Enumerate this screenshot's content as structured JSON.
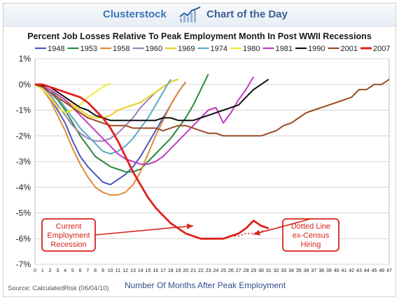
{
  "brand": {
    "name": "Clusterstock",
    "tagline": "Chart of the Day",
    "logo_icon": "trend-chart-logo-icon"
  },
  "source": "Source: CalculatedRisk (06/04/10)",
  "chart_data": {
    "type": "line",
    "title": "Percent Job Losses Relative To Peak Employment Month In Post WWII Recessions",
    "xlabel": "Number Of Months After Peak Employment",
    "ylabel": "",
    "xlim": [
      0,
      47
    ],
    "ylim": [
      -7,
      1
    ],
    "x_ticks": [
      0,
      1,
      2,
      3,
      4,
      5,
      6,
      7,
      8,
      9,
      10,
      11,
      12,
      13,
      14,
      15,
      16,
      17,
      18,
      19,
      20,
      21,
      22,
      23,
      24,
      25,
      26,
      27,
      28,
      29,
      30,
      31,
      32,
      33,
      34,
      35,
      36,
      37,
      38,
      39,
      40,
      41,
      42,
      43,
      44,
      45,
      46,
      47
    ],
    "y_ticks": [
      1,
      0,
      -1,
      -2,
      -3,
      -4,
      -5,
      -6,
      -7
    ],
    "y_tick_labels": [
      "1%",
      "0%",
      "-1%",
      "-2%",
      "-3%",
      "-4%",
      "-5%",
      "-6%",
      "-7%"
    ],
    "grid": "horizontal",
    "legend_position": "top",
    "series": [
      {
        "name": "1948",
        "color": "#4a56c4",
        "values": [
          0,
          -0.2,
          -0.5,
          -1.0,
          -1.5,
          -2.2,
          -2.8,
          -3.2,
          -3.5,
          -3.8,
          -3.9,
          -3.7,
          -3.5,
          -3.2,
          -2.8,
          -2.3,
          -1.8,
          -1.3,
          -0.8,
          -0.3,
          0.1
        ]
      },
      {
        "name": "1953",
        "color": "#2a8a3e",
        "values": [
          0,
          -0.1,
          -0.3,
          -0.6,
          -1.0,
          -1.5,
          -2.0,
          -2.4,
          -2.8,
          -3.0,
          -3.2,
          -3.3,
          -3.4,
          -3.4,
          -3.3,
          -3.0,
          -2.7,
          -2.4,
          -2.1,
          -1.7,
          -1.3,
          -0.8,
          -0.2,
          0.4
        ]
      },
      {
        "name": "1958",
        "color": "#e08a35",
        "values": [
          0,
          -0.2,
          -0.6,
          -1.2,
          -1.8,
          -2.5,
          -3.1,
          -3.6,
          -4.0,
          -4.2,
          -4.3,
          -4.3,
          -4.2,
          -3.9,
          -3.4,
          -2.7,
          -2.0,
          -1.4,
          -0.8,
          -0.3,
          0.1
        ]
      },
      {
        "name": "1960",
        "color": "#9a82b8",
        "values": [
          0,
          -0.1,
          -0.4,
          -0.8,
          -1.2,
          -1.6,
          -1.9,
          -2.1,
          -2.2,
          -2.2,
          -2.1,
          -1.9,
          -1.6,
          -1.3,
          -0.9,
          -0.6,
          -0.3,
          -0.1,
          0.1,
          0.2
        ]
      },
      {
        "name": "1969",
        "color": "#e8d020",
        "values": [
          0,
          -0.1,
          -0.2,
          -0.4,
          -0.6,
          -0.8,
          -1.0,
          -1.2,
          -1.3,
          -1.3,
          -1.2,
          -1.0,
          -0.9,
          -0.8,
          -0.7,
          -0.5,
          -0.3,
          -0.1,
          0.1,
          0.2
        ]
      },
      {
        "name": "1974",
        "color": "#5aa8c8",
        "values": [
          0,
          -0.1,
          -0.2,
          -0.5,
          -0.9,
          -1.3,
          -1.7,
          -2.0,
          -2.3,
          -2.6,
          -2.7,
          -2.6,
          -2.4,
          -2.1,
          -1.7,
          -1.3,
          -0.8,
          -0.3,
          0.2
        ]
      },
      {
        "name": "1980",
        "color": "#f2ec30",
        "values": [
          0,
          -0.2,
          -0.5,
          -0.9,
          -1.1,
          -1.0,
          -0.8,
          -0.5,
          -0.3,
          -0.1,
          0.05
        ]
      },
      {
        "name": "1981",
        "color": "#c23bc0",
        "values": [
          0,
          -0.1,
          -0.2,
          -0.4,
          -0.6,
          -0.9,
          -1.2,
          -1.5,
          -1.8,
          -2.1,
          -2.4,
          -2.7,
          -2.9,
          -3.0,
          -3.1,
          -3.1,
          -3.0,
          -2.8,
          -2.5,
          -2.2,
          -1.9,
          -1.6,
          -1.3,
          -1.0,
          -0.9,
          -1.5,
          -1.1,
          -0.6,
          -0.2,
          0.3
        ]
      },
      {
        "name": "1990",
        "color": "#111111",
        "values": [
          0,
          -0.05,
          -0.1,
          -0.3,
          -0.5,
          -0.7,
          -0.9,
          -1.0,
          -1.2,
          -1.3,
          -1.4,
          -1.4,
          -1.4,
          -1.4,
          -1.4,
          -1.4,
          -1.4,
          -1.3,
          -1.3,
          -1.4,
          -1.4,
          -1.4,
          -1.3,
          -1.2,
          -1.1,
          -1.0,
          -0.9,
          -0.8,
          -0.5,
          -0.2,
          0.0,
          0.2
        ]
      },
      {
        "name": "2001",
        "color": "#9a4a20",
        "values": [
          0,
          -0.1,
          -0.3,
          -0.5,
          -0.7,
          -0.9,
          -1.1,
          -1.3,
          -1.4,
          -1.5,
          -1.6,
          -1.6,
          -1.6,
          -1.7,
          -1.7,
          -1.7,
          -1.7,
          -1.8,
          -1.7,
          -1.6,
          -1.6,
          -1.7,
          -1.8,
          -1.9,
          -1.9,
          -2.0,
          -2.0,
          -2.0,
          -2.0,
          -2.0,
          -2.0,
          -1.9,
          -1.8,
          -1.6,
          -1.5,
          -1.3,
          -1.1,
          -1.0,
          -0.9,
          -0.8,
          -0.7,
          -0.6,
          -0.5,
          -0.2,
          -0.2,
          0.0,
          0.0,
          0.2
        ]
      },
      {
        "name": "2007",
        "color": "#e0201a",
        "values": [
          0,
          0,
          -0.1,
          -0.2,
          -0.3,
          -0.4,
          -0.5,
          -0.7,
          -1.0,
          -1.3,
          -1.7,
          -2.2,
          -2.8,
          -3.4,
          -3.9,
          -4.4,
          -4.8,
          -5.1,
          -5.4,
          -5.6,
          -5.8,
          -5.9,
          -6.0,
          -6.0,
          -6.0,
          -6.0,
          -5.9,
          -5.8,
          -5.6,
          -5.3,
          -5.5,
          -5.6
        ]
      },
      {
        "name": "2007 ex-Census",
        "color": "#e0201a",
        "style": "dotted",
        "x": [
          26,
          27,
          28,
          29,
          30,
          31
        ],
        "values": [
          -5.9,
          -5.9,
          -5.8,
          -5.8,
          -5.7,
          -5.7
        ]
      }
    ],
    "annotations": [
      {
        "text": [
          "Current",
          "Employment",
          "Recession"
        ],
        "target_x": 21,
        "target_y": -5.5
      },
      {
        "text": [
          "Dotted Line",
          "ex-Census",
          "Hiring"
        ],
        "target_x": 29,
        "target_y": -5.75
      }
    ]
  }
}
